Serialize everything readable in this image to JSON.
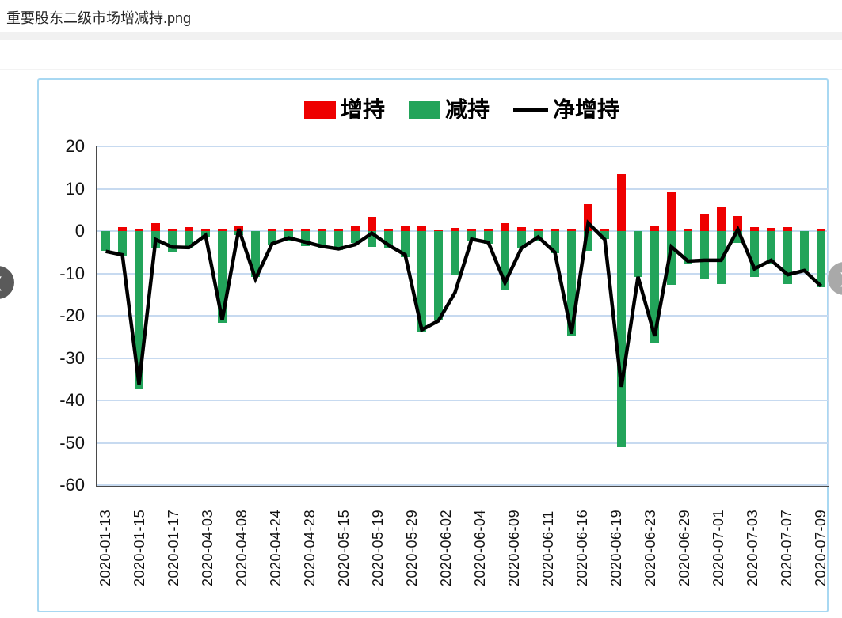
{
  "window": {
    "title": "重要股东二级市场增减持.png"
  },
  "carousel": {
    "prev_label": "❮",
    "next_label": "❯"
  },
  "chart_data": {
    "type": "bar",
    "subtype": "bar+line",
    "title": "",
    "legend_position": "top",
    "grid": true,
    "ylim": [
      -60,
      20
    ],
    "yticks": [
      20,
      10,
      0,
      -10,
      -20,
      -30,
      -40,
      -50,
      -60
    ],
    "x_labels": [
      "2020-01-13",
      "2020-01-15",
      "2020-01-17",
      "2020-04-03",
      "2020-04-08",
      "2020-04-24",
      "2020-04-28",
      "2020-05-15",
      "2020-05-19",
      "2020-05-29",
      "2020-06-02",
      "2020-06-04",
      "2020-06-09",
      "2020-06-11",
      "2020-06-16",
      "2020-06-19",
      "2020-06-23",
      "2020-06-29",
      "2020-07-01",
      "2020-07-03",
      "2020-07-07",
      "2020-07-09"
    ],
    "n_bars": 44,
    "colors": {
      "increase": "#ee0000",
      "decrease": "#22a45a",
      "net": "#000000",
      "grid": "#c7daf0",
      "axis": "#4a4a4a"
    },
    "legend": [
      {
        "label": "增持",
        "type": "bar",
        "color": "#ee0000"
      },
      {
        "label": "减持",
        "type": "bar",
        "color": "#22a45a"
      },
      {
        "label": "净增持",
        "type": "line",
        "color": "#000000"
      }
    ],
    "series": [
      {
        "name": "增持",
        "type": "bar",
        "values": [
          0.0,
          0.9,
          0.4,
          1.9,
          0.4,
          0.9,
          0.5,
          0.4,
          1.1,
          0.0,
          0.4,
          0.3,
          0.5,
          0.3,
          0.6,
          1.2,
          3.4,
          0.4,
          1.3,
          1.3,
          0.2,
          0.8,
          0.5,
          0.6,
          1.9,
          0.9,
          0.3,
          0.3,
          0.4,
          6.4,
          0.4,
          13.5,
          0.0,
          1.1,
          9.2,
          0.3,
          3.9,
          5.6,
          3.6,
          0.9,
          0.8,
          0.9,
          0.0,
          0.3
        ]
      },
      {
        "name": "减持",
        "type": "bar",
        "values": [
          -4.7,
          -5.9,
          -37.2,
          -4.0,
          -5.0,
          -4.1,
          -1.5,
          -21.6,
          -0.9,
          -10.9,
          -3.4,
          -2.4,
          -3.5,
          -4.2,
          -4.5,
          -2.8,
          -3.7,
          -4.1,
          -6.1,
          -23.8,
          -20.9,
          -10.3,
          -2.4,
          -2.9,
          -13.8,
          -4.1,
          -2.2,
          -5.2,
          -24.6,
          -4.6,
          -1.9,
          -51.0,
          -10.8,
          -26.6,
          -12.8,
          -7.8,
          -11.3,
          -12.5,
          -2.8,
          -10.8,
          -7.8,
          -12.5,
          -9.6,
          -13.3
        ]
      },
      {
        "name": "净增持",
        "type": "line",
        "values": [
          -4.8,
          -5.6,
          -36.2,
          -2.0,
          -3.8,
          -3.9,
          -1.0,
          -21.0,
          0.5,
          -11.3,
          -3.0,
          -1.6,
          -2.6,
          -3.6,
          -4.2,
          -3.2,
          -0.5,
          -3.3,
          -5.6,
          -23.3,
          -21.2,
          -14.5,
          -1.9,
          -2.7,
          -12.2,
          -4.0,
          -1.4,
          -5.0,
          -24.2,
          1.9,
          -2.0,
          -36.8,
          -10.8,
          -24.8,
          -3.7,
          -7.1,
          -6.9,
          -6.9,
          0.4,
          -8.9,
          -6.9,
          -10.3,
          -9.3,
          -13.0
        ]
      }
    ]
  }
}
